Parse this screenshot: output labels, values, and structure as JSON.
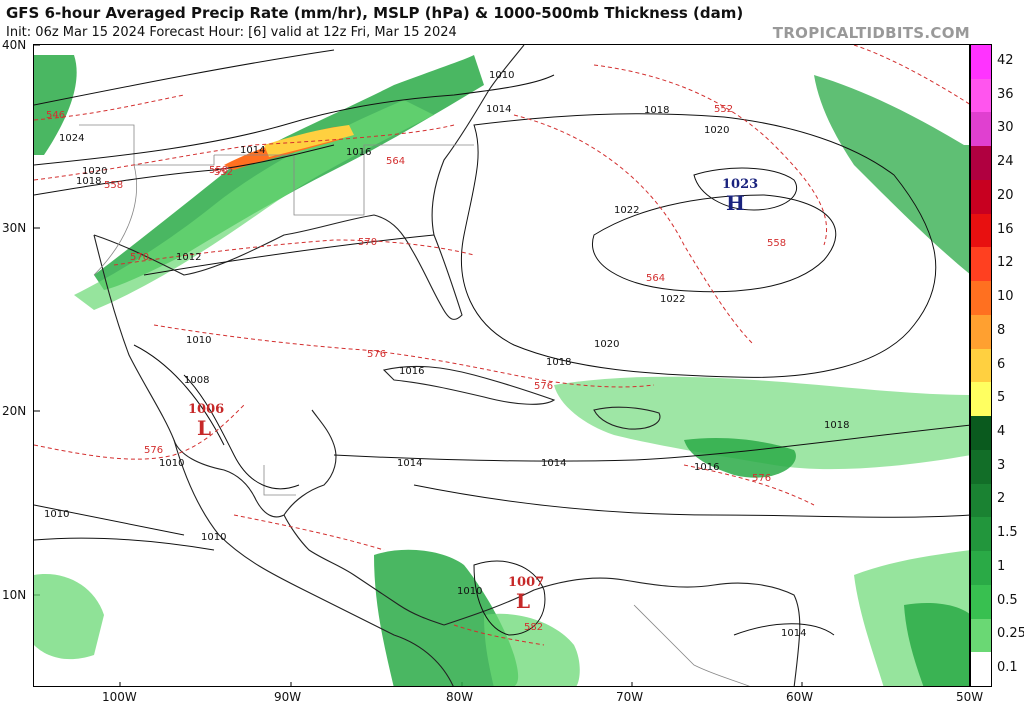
{
  "header": {
    "title": "GFS 6-hour Averaged Precip Rate (mm/hr), MSLP (hPa) & 1000-500mb Thickness (dam)",
    "subtitle": "Init: 06z Mar 15 2024   Forecast Hour: [6]   valid at 12z Fri, Mar 15 2024",
    "source": "TROPICALTIDBITS.COM"
  },
  "axes": {
    "lat_labels": [
      "40N",
      "30N",
      "20N",
      "10N"
    ],
    "lon_labels": [
      "100W",
      "90W",
      "80W",
      "70W",
      "60W",
      "50W"
    ]
  },
  "colorbar": {
    "labels": [
      "42",
      "36",
      "30",
      "24",
      "20",
      "16",
      "12",
      "10",
      "8",
      "6",
      "5",
      "4",
      "3",
      "2",
      "1.5",
      "1",
      "0.5",
      "0.25",
      "0.1"
    ],
    "colors": [
      "#ff33ff",
      "#ff55ee",
      "#e040d0",
      "#b00040",
      "#c80020",
      "#e81010",
      "#ff4020",
      "#ff7020",
      "#ffa030",
      "#ffd040",
      "#ffff60",
      "#0a5a1e",
      "#126e28",
      "#1a8232",
      "#22963c",
      "#2aaa46",
      "#38c050",
      "#6ad874",
      "#ffffff"
    ]
  },
  "pressure_centers": [
    {
      "type": "H",
      "value": "1023",
      "color": "#1a237e"
    },
    {
      "type": "L",
      "value": "1006",
      "color": "#c62828"
    },
    {
      "type": "L",
      "value": "1007",
      "color": "#c62828"
    }
  ],
  "isobar_labels": [
    "1010",
    "1014",
    "1018",
    "1020",
    "1024",
    "1020",
    "1018",
    "1014",
    "1016",
    "1022",
    "1022",
    "1020",
    "1018",
    "1016",
    "1010",
    "1008",
    "1012",
    "1014",
    "1014",
    "1018",
    "1016",
    "1010",
    "1010",
    "1010",
    "1010",
    "1014"
  ],
  "thickness_labels": [
    "546",
    "552",
    "558",
    "564",
    "570",
    "558",
    "564",
    "570",
    "576",
    "576",
    "576",
    "576",
    "582",
    "552",
    "558"
  ],
  "colors": {
    "isobar": "#111111",
    "thickness": "#d32f2f",
    "coast": "#222222",
    "border": "#888888",
    "precip_light": "#6ad874",
    "precip_mid": "#2aaa46",
    "precip_heavy": "#ffd040"
  }
}
